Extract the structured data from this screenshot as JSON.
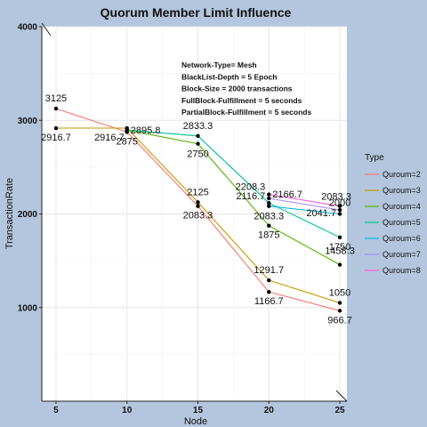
{
  "chart_data": {
    "type": "line",
    "title": "Quorum Member Limit Influence",
    "xlabel": "Node",
    "ylabel": "TransactionRate",
    "x": [
      5,
      10,
      15,
      20,
      25
    ],
    "xticks": [
      "5",
      "10",
      "15",
      "20",
      "25"
    ],
    "yticks": [
      "1000",
      "2000",
      "3000",
      "4000"
    ],
    "xlim": [
      4,
      25.5
    ],
    "ylim": [
      0,
      4000
    ],
    "grid": true,
    "legend": {
      "title": "Type",
      "position": "right",
      "entries": [
        "Quroum=2",
        "Quroum=3",
        "Quroum=4",
        "Quroum=5",
        "Quroum=6",
        "Quroum=7",
        "Quroum=8"
      ]
    },
    "annotations": [
      "Network-Type= Mesh",
      "BlackList-Depth = 5 Epoch",
      "Block-Size = 2000 transactions",
      "FullBlock-Fulfillment = 5 seconds",
      "PartialBlock-Fulfillment = 5 seconds"
    ],
    "series": [
      {
        "name": "Quroum=2",
        "color": "#f8766d",
        "x": [
          5,
          10,
          15,
          20,
          25
        ],
        "values": [
          3125,
          2875,
          2083.3,
          1166.7,
          966.7
        ],
        "labels": [
          "3125",
          "2875",
          "2083.3",
          "1166.7",
          "966.7"
        ]
      },
      {
        "name": "Quroum=3",
        "color": "#c49a00",
        "x": [
          5,
          10,
          15,
          20,
          25
        ],
        "values": [
          2916.7,
          2916.7,
          2125,
          1291.7,
          1050
        ],
        "labels": [
          "2916.7",
          "2916.7",
          "2125",
          "1291.7",
          "1050"
        ]
      },
      {
        "name": "Quroum=4",
        "color": "#53b400",
        "x": [
          10,
          15,
          20,
          25
        ],
        "values": [
          2895.8,
          2750,
          1875,
          1458.3
        ],
        "labels": [
          "2895.8",
          "2750",
          "1875",
          "1458.3"
        ]
      },
      {
        "name": "Quroum=5",
        "color": "#00c094",
        "x": [
          10,
          15,
          20,
          25
        ],
        "values": [
          2895.8,
          2833.3,
          2116.7,
          1750
        ],
        "labels": [
          "",
          "2833.3",
          "2116.7",
          "1750"
        ]
      },
      {
        "name": "Quroum=6",
        "color": "#00b6eb",
        "x": [
          20,
          25
        ],
        "values": [
          2083.3,
          2000
        ],
        "labels": [
          "2083.3",
          "2000"
        ]
      },
      {
        "name": "Quroum=7",
        "color": "#a58aff",
        "x": [
          20,
          25
        ],
        "values": [
          2166.7,
          2041.7
        ],
        "labels": [
          "2166.7",
          "2041.7"
        ]
      },
      {
        "name": "Quroum=8",
        "color": "#fb61d7",
        "x": [
          20,
          25
        ],
        "values": [
          2208.3,
          2083.3
        ],
        "labels": [
          "2208.3",
          "2083.3"
        ]
      }
    ]
  }
}
